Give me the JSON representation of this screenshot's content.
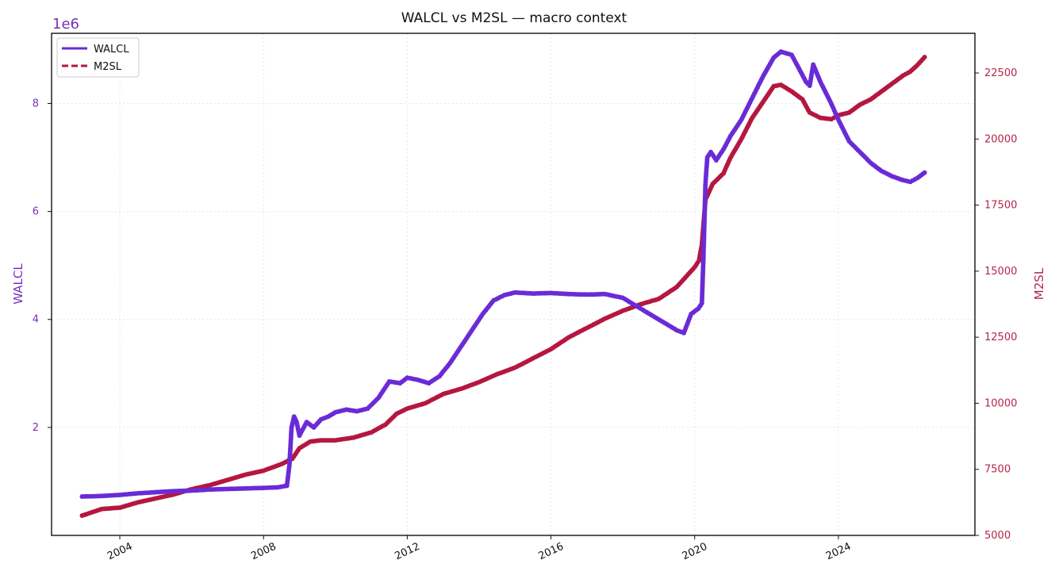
{
  "chart_data": {
    "type": "line",
    "title": "WALCL vs M2SL — macro context",
    "x_ticks": [
      "2004",
      "2008",
      "2012",
      "2016",
      "2020",
      "2024"
    ],
    "xlim": [
      2002.1,
      2027.8
    ],
    "grid": true,
    "legend_position": "top-left",
    "y_left": {
      "label": "WALCL",
      "offset_label": "1e6",
      "ticks": [
        "2",
        "4",
        "6",
        "8"
      ],
      "lim": [
        0.0,
        9.3
      ],
      "color": "#6a2bd6"
    },
    "y_right": {
      "label": "M2SL",
      "ticks": [
        "5000",
        "7500",
        "10000",
        "12500",
        "15000",
        "17500",
        "20000",
        "22500"
      ],
      "lim": [
        5000,
        24000
      ],
      "color": "#b5173f"
    },
    "series": [
      {
        "name": "WALCL",
        "axis": "left",
        "color": "#6a2bd6",
        "style": "solid",
        "x": [
          2002.95,
          2003.5,
          2004.0,
          2004.5,
          2005.0,
          2005.5,
          2006.0,
          2006.5,
          2007.0,
          2007.5,
          2008.0,
          2008.4,
          2008.65,
          2008.72,
          2008.78,
          2008.85,
          2008.92,
          2009.0,
          2009.2,
          2009.4,
          2009.6,
          2009.8,
          2010.0,
          2010.3,
          2010.6,
          2010.9,
          2011.2,
          2011.5,
          2011.8,
          2012.0,
          2012.3,
          2012.6,
          2012.9,
          2013.2,
          2013.5,
          2013.8,
          2014.1,
          2014.4,
          2014.7,
          2015.0,
          2015.5,
          2016.0,
          2016.5,
          2017.0,
          2017.5,
          2018.0,
          2018.5,
          2019.0,
          2019.5,
          2019.7,
          2019.9,
          2020.1,
          2020.2,
          2020.25,
          2020.3,
          2020.35,
          2020.45,
          2020.6,
          2020.8,
          2021.0,
          2021.3,
          2021.6,
          2021.9,
          2022.2,
          2022.4,
          2022.7,
          2022.9,
          2023.1,
          2023.2,
          2023.3,
          2023.5,
          2023.8,
          2024.0,
          2024.3,
          2024.6,
          2024.9,
          2025.2,
          2025.5,
          2025.8,
          2026.0,
          2026.2,
          2026.4
        ],
        "values": [
          0.72,
          0.73,
          0.75,
          0.78,
          0.8,
          0.82,
          0.83,
          0.85,
          0.86,
          0.87,
          0.88,
          0.89,
          0.92,
          1.3,
          2.0,
          2.2,
          2.1,
          1.85,
          2.1,
          2.0,
          2.15,
          2.2,
          2.28,
          2.33,
          2.3,
          2.35,
          2.55,
          2.85,
          2.82,
          2.92,
          2.88,
          2.82,
          2.95,
          3.2,
          3.5,
          3.8,
          4.1,
          4.35,
          4.45,
          4.5,
          4.48,
          4.49,
          4.47,
          4.46,
          4.47,
          4.4,
          4.2,
          4.0,
          3.8,
          3.75,
          4.1,
          4.2,
          4.3,
          5.3,
          6.5,
          7.0,
          7.1,
          6.95,
          7.15,
          7.4,
          7.7,
          8.1,
          8.5,
          8.85,
          8.96,
          8.9,
          8.65,
          8.4,
          8.33,
          8.72,
          8.4,
          8.0,
          7.7,
          7.3,
          7.1,
          6.9,
          6.75,
          6.65,
          6.58,
          6.55,
          6.62,
          6.72
        ]
      },
      {
        "name": "M2SL",
        "axis": "right",
        "color": "#b5173f",
        "style": "dashed",
        "x": [
          2002.95,
          2003.5,
          2004.0,
          2004.5,
          2005.0,
          2005.5,
          2006.0,
          2006.5,
          2007.0,
          2007.5,
          2008.0,
          2008.5,
          2008.8,
          2009.0,
          2009.3,
          2009.6,
          2010.0,
          2010.5,
          2011.0,
          2011.4,
          2011.7,
          2012.0,
          2012.5,
          2013.0,
          2013.5,
          2014.0,
          2014.5,
          2015.0,
          2015.5,
          2016.0,
          2016.5,
          2017.0,
          2017.5,
          2018.0,
          2018.5,
          2019.0,
          2019.5,
          2020.0,
          2020.12,
          2020.2,
          2020.3,
          2020.5,
          2020.8,
          2021.0,
          2021.3,
          2021.6,
          2021.9,
          2022.2,
          2022.4,
          2022.7,
          2023.0,
          2023.2,
          2023.5,
          2023.8,
          2024.0,
          2024.3,
          2024.6,
          2024.9,
          2025.2,
          2025.5,
          2025.8,
          2026.0,
          2026.2,
          2026.4
        ],
        "values": [
          5750,
          6000,
          6050,
          6250,
          6400,
          6550,
          6750,
          6900,
          7100,
          7300,
          7450,
          7700,
          7900,
          8300,
          8550,
          8600,
          8600,
          8700,
          8900,
          9200,
          9600,
          9800,
          10000,
          10350,
          10550,
          10800,
          11100,
          11350,
          11700,
          12050,
          12500,
          12850,
          13200,
          13500,
          13750,
          13950,
          14400,
          15150,
          15400,
          16000,
          17700,
          18300,
          18700,
          19300,
          20000,
          20800,
          21400,
          22000,
          22050,
          21800,
          21500,
          21000,
          20800,
          20750,
          20900,
          21000,
          21300,
          21500,
          21800,
          22100,
          22400,
          22550,
          22800,
          23100
        ]
      }
    ]
  }
}
